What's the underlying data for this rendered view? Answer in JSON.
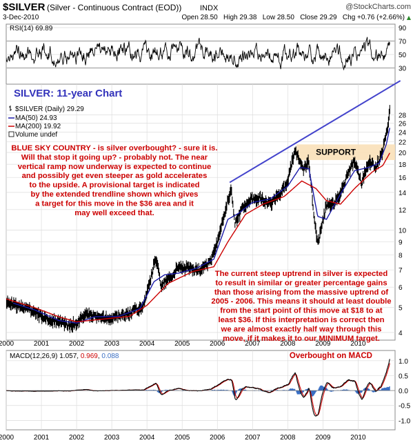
{
  "header": {
    "symbol": "$SILVER",
    "description": "(Silver - Continuous Contract (EOD))",
    "exchange": "INDX",
    "date": "3-Dec-2010",
    "ohlc": "Open 28.50   High 29.38   Low 28.50   Close 29.29   Chg +0.76 (+2.66%)",
    "chg_arrow": "▲",
    "watermark": "@StockCharts.com"
  },
  "colors": {
    "price_bar": "#000000",
    "ma50": "#1a1aa8",
    "ma200": "#cc0000",
    "trendline": "#4444cc",
    "annotation": "#cc0000",
    "title_blue": "#3333bb",
    "support_band": "#f9e0b8",
    "grid": "#dcdcdc",
    "macd_signal": "#cc0000",
    "macd_hist": "#3a6fc4"
  },
  "chart_data": [
    {
      "type": "line",
      "panel": "rsi",
      "label": "RSI(14) 69.89",
      "ylim": [
        10,
        90
      ],
      "reference_lines": [
        30,
        70
      ],
      "y_ticks": [
        30,
        50,
        70,
        90
      ],
      "end_value": 69.89
    },
    {
      "type": "line",
      "panel": "price",
      "title": "SILVER: 11-year Chart",
      "log_scale": true,
      "ylim": [
        3.9,
        31
      ],
      "y_ticks": [
        4,
        5,
        6,
        7,
        8,
        9,
        10,
        12,
        14,
        16,
        18,
        20,
        22,
        24,
        26,
        28
      ],
      "x_ticks": [
        "2000",
        "2001",
        "2002",
        "2003",
        "2004",
        "2005",
        "2006",
        "2007",
        "2008",
        "2009",
        "2010"
      ],
      "legend": [
        {
          "label": "$SILVER (Daily) 29.29",
          "marker": "bar"
        },
        {
          "label": "MA(50) 24.93",
          "marker": "line-blue"
        },
        {
          "label": "MA(200) 19.92",
          "marker": "line-red"
        },
        {
          "label": "Volume undef",
          "marker": "box"
        }
      ],
      "series": [
        {
          "name": "$SILVER (Daily)",
          "points": [
            [
              2000.0,
              5.3
            ],
            [
              2000.3,
              5.1
            ],
            [
              2000.6,
              4.95
            ],
            [
              2000.9,
              4.7
            ],
            [
              2001.2,
              4.5
            ],
            [
              2001.5,
              4.4
            ],
            [
              2001.8,
              4.25
            ],
            [
              2002.0,
              4.35
            ],
            [
              2002.3,
              4.75
            ],
            [
              2002.6,
              4.55
            ],
            [
              2002.9,
              4.55
            ],
            [
              2003.2,
              4.6
            ],
            [
              2003.5,
              4.75
            ],
            [
              2003.9,
              5.1
            ],
            [
              2004.1,
              6.4
            ],
            [
              2004.25,
              7.9
            ],
            [
              2004.4,
              6.1
            ],
            [
              2004.7,
              6.6
            ],
            [
              2004.9,
              7.2
            ],
            [
              2005.2,
              7.1
            ],
            [
              2005.5,
              7.0
            ],
            [
              2005.8,
              7.5
            ],
            [
              2006.0,
              9.0
            ],
            [
              2006.3,
              13.2
            ],
            [
              2006.4,
              14.2
            ],
            [
              2006.5,
              10.5
            ],
            [
              2006.7,
              12.0
            ],
            [
              2006.95,
              13.1
            ],
            [
              2007.2,
              13.4
            ],
            [
              2007.5,
              12.6
            ],
            [
              2007.8,
              13.9
            ],
            [
              2008.0,
              15.5
            ],
            [
              2008.2,
              20.5
            ],
            [
              2008.45,
              17.0
            ],
            [
              2008.6,
              18.5
            ],
            [
              2008.75,
              11.2
            ],
            [
              2008.85,
              8.8
            ],
            [
              2009.1,
              12.5
            ],
            [
              2009.3,
              12.6
            ],
            [
              2009.5,
              13.8
            ],
            [
              2009.7,
              16.5
            ],
            [
              2009.9,
              18.7
            ],
            [
              2010.1,
              15.3
            ],
            [
              2010.3,
              18.5
            ],
            [
              2010.5,
              17.6
            ],
            [
              2010.65,
              19.2
            ],
            [
              2010.75,
              22.0
            ],
            [
              2010.85,
              26.0
            ],
            [
              2010.9,
              29.29
            ]
          ]
        },
        {
          "name": "MA(50)",
          "end_value": 24.93,
          "points": [
            [
              2000.2,
              5.2
            ],
            [
              2000.8,
              4.9
            ],
            [
              2001.5,
              4.45
            ],
            [
              2002.0,
              4.35
            ],
            [
              2002.5,
              4.6
            ],
            [
              2003.2,
              4.62
            ],
            [
              2003.8,
              4.95
            ],
            [
              2004.2,
              6.3
            ],
            [
              2004.5,
              6.7
            ],
            [
              2004.9,
              6.8
            ],
            [
              2005.4,
              7.1
            ],
            [
              2005.9,
              7.7
            ],
            [
              2006.3,
              11.0
            ],
            [
              2006.6,
              11.6
            ],
            [
              2007.0,
              12.8
            ],
            [
              2007.5,
              13.2
            ],
            [
              2008.0,
              14.8
            ],
            [
              2008.35,
              17.5
            ],
            [
              2008.6,
              17.3
            ],
            [
              2008.85,
              11.3
            ],
            [
              2009.1,
              11.0
            ],
            [
              2009.5,
              13.8
            ],
            [
              2009.9,
              17.0
            ],
            [
              2010.3,
              17.5
            ],
            [
              2010.6,
              18.2
            ],
            [
              2010.8,
              21.5
            ],
            [
              2010.9,
              24.93
            ]
          ]
        },
        {
          "name": "MA(200)",
          "end_value": 19.92,
          "points": [
            [
              2000.0,
              5.4
            ],
            [
              2000.8,
              5.0
            ],
            [
              2001.5,
              4.6
            ],
            [
              2002.0,
              4.4
            ],
            [
              2002.7,
              4.5
            ],
            [
              2003.5,
              4.62
            ],
            [
              2004.0,
              5.1
            ],
            [
              2004.6,
              6.2
            ],
            [
              2005.3,
              6.9
            ],
            [
              2005.9,
              7.2
            ],
            [
              2006.3,
              9.0
            ],
            [
              2006.8,
              11.5
            ],
            [
              2007.3,
              12.6
            ],
            [
              2007.9,
              13.5
            ],
            [
              2008.4,
              15.5
            ],
            [
              2008.8,
              14.5
            ],
            [
              2009.1,
              13.0
            ],
            [
              2009.5,
              12.6
            ],
            [
              2009.9,
              14.5
            ],
            [
              2010.4,
              16.8
            ],
            [
              2010.7,
              17.8
            ],
            [
              2010.9,
              19.92
            ]
          ]
        }
      ],
      "trendline": {
        "from": [
          2006.35,
          15.3
        ],
        "to": [
          2011.2,
          38.0
        ]
      },
      "support_zone": {
        "label": "SUPPORT",
        "y": [
          18.7,
          21.5
        ],
        "x": [
          2008.25,
          2011.3
        ]
      },
      "annotations": [
        {
          "text": "BLUE SKY COUNTRY - is silver overbought? - sure it is.\nWill that stop it going up? - probably not. The near\nvertical ramp now underway is expected to continue\nand possibly get even steeper as gold accelerates\nto the upside. A provisional target is indicated\nby the extended trendline shown which gives\na target for this move in the $36 area and it\nmay well exceed that."
        },
        {
          "text": "The current steep uptrend in silver is expected\nto result in similar or greater percentage gains\nthan those arising from the massive uptrend of\n2005 - 2006. This means it should at least double\nfrom the start point of this move at $18 to at\nleast $36. If this interpretation is correct then\nwe are almost exactly half way through this\nmove, if it makes it to our MINIMUM target."
        }
      ]
    },
    {
      "type": "line",
      "panel": "macd",
      "label": "MACD(12,26,9) 1.057, 0.969, 0.088",
      "ylim": [
        -1.2,
        1.25
      ],
      "y_ticks": [
        -1.0,
        -0.5,
        0.0,
        0.5,
        1.0
      ],
      "annotation": "Overbought on MACD",
      "series": [
        {
          "name": "MACD",
          "end_value": 1.057
        },
        {
          "name": "Signal",
          "end_value": 0.969
        },
        {
          "name": "Histogram",
          "end_value": 0.088
        }
      ]
    }
  ],
  "macd_label_parts": {
    "prefix": "MACD(12,26,9) 1.057, ",
    "signal": "0.969",
    "sep": ", ",
    "hist": "0.088"
  }
}
